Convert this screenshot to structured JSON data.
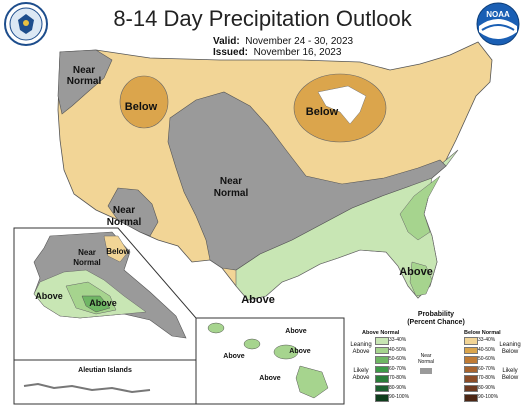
{
  "header": {
    "title": "8-14 Day Precipitation Outlook",
    "valid_label": "Valid:",
    "valid_value": "November 24 - 30, 2023",
    "issued_label": "Issued:",
    "issued_value": "November 16, 2023",
    "noaa_logo_text": "NOAA"
  },
  "map_labels": {
    "nw_near_normal_1": "Near",
    "nw_near_normal_2": "Normal",
    "idaho_below": "Below",
    "great_lakes_below": "Below",
    "central_near_normal_1": "Near",
    "central_near_normal_2": "Normal",
    "ca_near_normal_1": "Near",
    "ca_near_normal_2": "Normal",
    "florida_above": "Above",
    "texas_above": "Above",
    "alaska_near_normal_1": "Near",
    "alaska_near_normal_2": "Normal",
    "alaska_below": "Below",
    "alaska_above_west": "Above",
    "alaska_above_south": "Above",
    "aleutian_label": "Aleutian Islands",
    "hawaii_above_1": "Above",
    "hawaii_above_2": "Above",
    "hawaii_above_3": "Above",
    "hawaii_above_4": "Above"
  },
  "legend": {
    "title_line1": "Probability",
    "title_line2": "(Percent Chance)",
    "above_header": "Above Normal",
    "below_header": "Below Normal",
    "near_label_1": "Near",
    "near_label_2": "Normal",
    "above_items": [
      {
        "label": "33-40%",
        "color": "#c8e6b4"
      },
      {
        "label": "40-50%",
        "color": "#a6d48e"
      },
      {
        "label": "50-60%",
        "color": "#6fb664"
      },
      {
        "label": "60-70%",
        "color": "#3d9a48"
      },
      {
        "label": "70-80%",
        "color": "#2a7d3a"
      },
      {
        "label": "80-90%",
        "color": "#1c6030"
      },
      {
        "label": "90-100%",
        "color": "#0e3d1c"
      }
    ],
    "below_items": [
      {
        "label": "33-40%",
        "color": "#f2d596"
      },
      {
        "label": "40-50%",
        "color": "#dba54c"
      },
      {
        "label": "50-60%",
        "color": "#c07b35"
      },
      {
        "label": "60-70%",
        "color": "#a8642f"
      },
      {
        "label": "70-80%",
        "color": "#8c4d28"
      },
      {
        "label": "80-90%",
        "color": "#6e3a20"
      },
      {
        "label": "90-100%",
        "color": "#4c2614"
      }
    ],
    "near_color": "#9a9a9a",
    "leaning_above": "Leaning Above",
    "likely_above": "Likely Above",
    "leaning_below": "Leaning Below",
    "likely_below": "Likely Below"
  },
  "colors": {
    "near_normal": "#9a9a9a",
    "leaning_below": "#f2d596",
    "below_40_50": "#dba54c",
    "leaning_above": "#c8e6b4",
    "above_40_50": "#a6d48e",
    "above_50_60": "#6fb664"
  }
}
